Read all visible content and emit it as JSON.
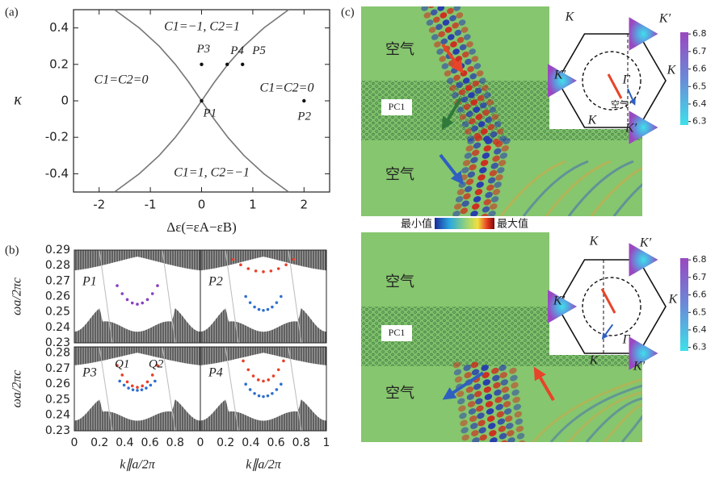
{
  "chart_data": [
    {
      "type": "phase-diagram",
      "panel_label": "(a)",
      "x_label": "Δε(=εA−εB)",
      "y_label": "κ",
      "xlim": [
        -2.5,
        2.5
      ],
      "xticks": [
        -2,
        -1,
        0,
        1,
        2
      ],
      "ylim": [
        -0.5,
        0.5
      ],
      "yticks": [
        -0.4,
        -0.2,
        0,
        0.2,
        0.4
      ],
      "boundaries": [
        {
          "x": [
            -1.7,
            -1.216,
            -0.828,
            -0.512,
            -0.244,
            0,
            0.244,
            0.512,
            0.828,
            1.216,
            1.7
          ],
          "y": [
            -0.5,
            -0.4,
            -0.3,
            -0.2,
            -0.1,
            0,
            0.1,
            0.2,
            0.3,
            0.4,
            0.5
          ]
        },
        {
          "x": [
            1.7,
            1.216,
            0.828,
            0.512,
            0.244,
            0,
            -0.244,
            -0.512,
            -0.828,
            -1.216,
            -1.7
          ],
          "y": [
            -0.5,
            -0.4,
            -0.3,
            -0.2,
            -0.1,
            0,
            0.1,
            0.2,
            0.3,
            0.4,
            0.5
          ]
        }
      ],
      "points": {
        "names": [
          "P1",
          "P2",
          "P3",
          "P4",
          "P5"
        ],
        "x": [
          0,
          2,
          0,
          0.5,
          0.8
        ],
        "y": [
          0,
          0,
          0.2,
          0.2,
          0.2
        ]
      },
      "regions": [
        "C1=−1, C2=1",
        "C1=C2=0",
        "C1=C2=0",
        "C1=1, C2=−1"
      ]
    },
    {
      "type": "band",
      "panel_label": "(b)",
      "x_label": "k∥a/2π",
      "y_label": "ωa/2πc",
      "xlim": [
        0,
        1
      ],
      "xticks": [
        0,
        0.2,
        0.4,
        0.6,
        0.8,
        1
      ],
      "rows": [
        {
          "ylim": [
            0.23,
            0.29
          ],
          "yticks": [
            0.23,
            0.24,
            0.25,
            0.26,
            0.27,
            0.28,
            0.29
          ]
        },
        {
          "ylim": [
            0.23,
            0.284
          ],
          "yticks": [
            0.23,
            0.24,
            0.25,
            0.26,
            0.27,
            0.28
          ]
        }
      ],
      "subplots": [
        {
          "label": "P1",
          "series": [
            {
              "color": "#8a3fc0",
              "x": [
                0.34,
                0.38,
                0.42,
                0.46,
                0.5,
                0.54,
                0.58,
                0.62,
                0.66
              ],
              "values": [
                0.267,
                0.2618,
                0.258,
                0.2558,
                0.255,
                0.2558,
                0.258,
                0.2618,
                0.267
              ]
            }
          ]
        },
        {
          "label": "P2",
          "series": [
            {
              "color": "#e8402a",
              "x": [
                0.26,
                0.32,
                0.38,
                0.44,
                0.5,
                0.56,
                0.62,
                0.68,
                0.74
              ],
              "values": [
                0.284,
                0.2805,
                0.278,
                0.2765,
                0.276,
                0.2765,
                0.278,
                0.2805,
                0.284
              ]
            },
            {
              "color": "#2f6fd0",
              "x": [
                0.36,
                0.395,
                0.43,
                0.465,
                0.5,
                0.535,
                0.57,
                0.605,
                0.64
              ],
              "values": [
                0.26,
                0.256,
                0.2532,
                0.2516,
                0.251,
                0.2516,
                0.2532,
                0.256,
                0.26
              ]
            }
          ]
        },
        {
          "label": "P3",
          "annotations": [
            "Q1",
            "Q2"
          ],
          "series": [
            {
              "color": "#e8402a",
              "x": [
                0.34,
                0.38,
                0.42,
                0.46,
                0.5,
                0.54,
                0.58,
                0.62,
                0.66
              ],
              "values": [
                0.272,
                0.2659,
                0.2615,
                0.2589,
                0.258,
                0.2589,
                0.2615,
                0.2659,
                0.272
              ]
            },
            {
              "color": "#2f6fd0",
              "x": [
                0.36,
                0.395,
                0.43,
                0.465,
                0.5,
                0.535,
                0.57,
                0.605,
                0.64
              ],
              "values": [
                0.262,
                0.2594,
                0.2575,
                0.2564,
                0.256,
                0.2564,
                0.2575,
                0.2594,
                0.262
              ]
            }
          ]
        },
        {
          "label": "P4",
          "series": [
            {
              "color": "#e8402a",
              "x": [
                0.34,
                0.38,
                0.42,
                0.46,
                0.5,
                0.54,
                0.58,
                0.62,
                0.66
              ],
              "values": [
                0.275,
                0.2693,
                0.2653,
                0.2628,
                0.262,
                0.2628,
                0.2653,
                0.2693,
                0.275
              ]
            },
            {
              "color": "#2f6fd0",
              "x": [
                0.36,
                0.395,
                0.43,
                0.465,
                0.5,
                0.535,
                0.57,
                0.605,
                0.64
              ],
              "values": [
                0.26,
                0.2565,
                0.254,
                0.2525,
                0.252,
                0.2525,
                0.254,
                0.2565,
                0.26
              ]
            }
          ]
        }
      ]
    },
    {
      "type": "field-map",
      "panel_label": "(c)",
      "colormap": {
        "min_label": "最小值",
        "max_label": "最大值"
      },
      "maps": [
        {
          "region_labels": [
            "空气",
            "空气"
          ],
          "crystal_label": "PC1",
          "inset_labels": [
            "K",
            "K′",
            "K′",
            "K",
            "K",
            "K′"
          ],
          "gamma": "Γ",
          "inset_note": "空气",
          "colorbar": {
            "ylim": [
              6.28,
              6.81
            ],
            "yticks": [
              6.3,
              6.4,
              6.5,
              6.6,
              6.7,
              6.8
            ]
          }
        },
        {
          "region_labels": [
            "空气",
            "空气"
          ],
          "crystal_label": "PC1",
          "inset_labels": [
            "K",
            "K′",
            "K′",
            "K",
            "K",
            "K′"
          ],
          "gamma": "Γ",
          "colorbar": {
            "ylim": [
              6.28,
              6.81
            ],
            "yticks": [
              6.3,
              6.4,
              6.5,
              6.6,
              6.7,
              6.8
            ]
          }
        }
      ]
    }
  ]
}
